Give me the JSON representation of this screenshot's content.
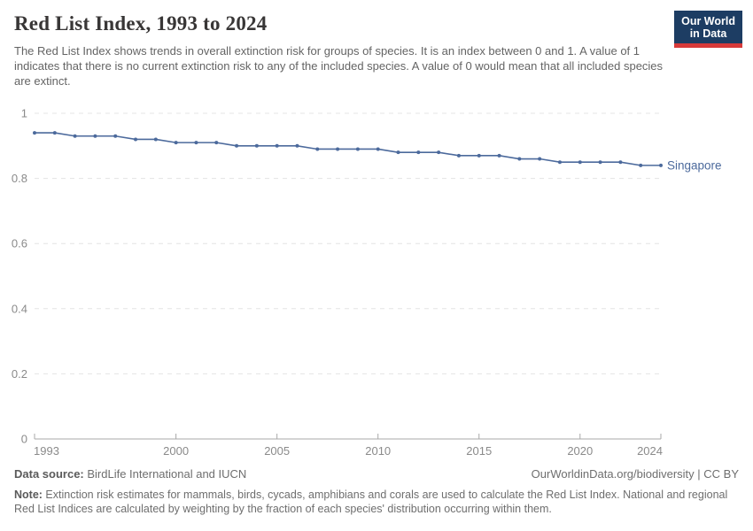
{
  "header": {
    "title": "Red List Index, 1993 to 2024",
    "subtitle": "The Red List Index shows trends in overall extinction risk for groups of species. It is an index between 0 and 1. A value of 1 indicates that there is no current extinction risk to any of the included species. A value of 0 would mean that all included species are extinct.",
    "logo": {
      "line1": "Our World",
      "line2": "in Data",
      "bg_color": "#1d3d63",
      "accent_color": "#d73a3a"
    }
  },
  "chart_data": {
    "type": "line",
    "title": "Red List Index, 1993 to 2024",
    "xlabel": "",
    "ylabel": "",
    "xlim": [
      1993,
      2024
    ],
    "ylim": [
      0,
      1
    ],
    "grid": "horizontal-dashed",
    "legend_position": "end-of-line-label",
    "x_ticks": [
      {
        "value": 1993,
        "label": "1993"
      },
      {
        "value": 2000,
        "label": "2000"
      },
      {
        "value": 2005,
        "label": "2005"
      },
      {
        "value": 2010,
        "label": "2010"
      },
      {
        "value": 2015,
        "label": "2015"
      },
      {
        "value": 2020,
        "label": "2020"
      },
      {
        "value": 2024,
        "label": "2024"
      }
    ],
    "y_ticks": [
      {
        "value": 0,
        "label": "0"
      },
      {
        "value": 0.2,
        "label": "0.2"
      },
      {
        "value": 0.4,
        "label": "0.4"
      },
      {
        "value": 0.6,
        "label": "0.6"
      },
      {
        "value": 0.8,
        "label": "0.8"
      },
      {
        "value": 1,
        "label": "1"
      }
    ],
    "series": [
      {
        "name": "Singapore",
        "color": "#4c6a9c",
        "x": [
          1993,
          1994,
          1995,
          1996,
          1997,
          1998,
          1999,
          2000,
          2001,
          2002,
          2003,
          2004,
          2005,
          2006,
          2007,
          2008,
          2009,
          2010,
          2011,
          2012,
          2013,
          2014,
          2015,
          2016,
          2017,
          2018,
          2019,
          2020,
          2021,
          2022,
          2023,
          2024
        ],
        "values": [
          0.94,
          0.94,
          0.93,
          0.93,
          0.93,
          0.92,
          0.92,
          0.91,
          0.91,
          0.91,
          0.9,
          0.9,
          0.9,
          0.9,
          0.89,
          0.89,
          0.89,
          0.89,
          0.88,
          0.88,
          0.88,
          0.87,
          0.87,
          0.87,
          0.86,
          0.86,
          0.85,
          0.85,
          0.85,
          0.85,
          0.84,
          0.84
        ]
      }
    ]
  },
  "footer": {
    "datasource_label": "Data source:",
    "datasource_value": " BirdLife International and IUCN",
    "attribution": "OurWorldinData.org/biodiversity | CC BY",
    "note_label": "Note:",
    "note_value": " Extinction risk estimates for mammals, birds, cycads, amphibians and corals are used to calculate the Red List Index. National and regional Red List Indices are calculated by weighting by the fraction of each species' distribution occurring within them."
  }
}
